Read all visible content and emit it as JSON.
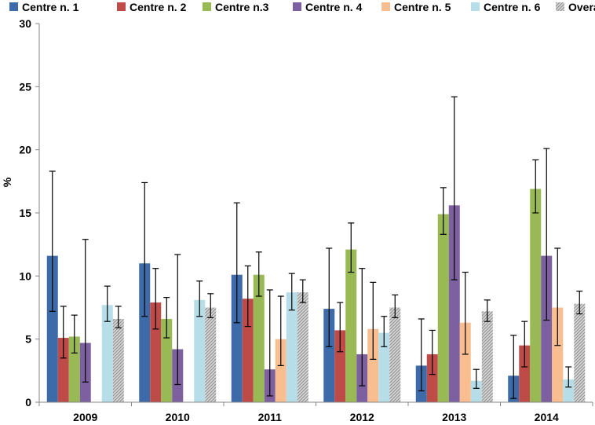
{
  "chart_data": {
    "type": "bar",
    "title": "",
    "xlabel": "",
    "ylabel": "%",
    "ylim": [
      0,
      30
    ],
    "yticks": [
      0,
      5,
      10,
      15,
      20,
      25,
      30
    ],
    "categories": [
      "2009",
      "2010",
      "2011",
      "2012",
      "2013",
      "2014"
    ],
    "legend_position": "top",
    "grid": false,
    "series": [
      {
        "name": "Centre n. 1",
        "color": "#3d6aa8",
        "pattern": false,
        "values": [
          11.6,
          11.0,
          10.1,
          7.4,
          2.9,
          2.1
        ],
        "error_low": [
          7.2,
          6.8,
          6.3,
          4.4,
          0.9,
          0.3
        ],
        "error_high": [
          18.3,
          17.4,
          15.8,
          12.2,
          6.6,
          5.3
        ]
      },
      {
        "name": "Centre n. 2",
        "color": "#be4b48",
        "pattern": false,
        "values": [
          5.1,
          7.9,
          8.2,
          5.7,
          3.8,
          4.5
        ],
        "error_low": [
          3.5,
          5.8,
          6.0,
          4.0,
          2.2,
          2.8
        ],
        "error_high": [
          7.6,
          10.6,
          10.8,
          7.9,
          5.7,
          6.4
        ]
      },
      {
        "name": "Centre n.3",
        "color": "#98b954",
        "pattern": false,
        "values": [
          5.2,
          6.6,
          10.1,
          12.1,
          14.9,
          16.9
        ],
        "error_low": [
          3.9,
          5.1,
          8.4,
          10.3,
          13.3,
          15.0
        ],
        "error_high": [
          6.9,
          8.3,
          11.9,
          14.2,
          17.0,
          19.2
        ]
      },
      {
        "name": "Centre n. 4",
        "color": "#7d60a0",
        "pattern": false,
        "values": [
          4.7,
          4.2,
          2.6,
          3.8,
          15.6,
          11.6
        ],
        "error_low": [
          1.6,
          1.4,
          0.5,
          1.3,
          9.7,
          6.5
        ],
        "error_high": [
          12.9,
          11.7,
          8.9,
          10.6,
          24.2,
          20.1
        ]
      },
      {
        "name": "Centre n. 5",
        "color": "#f9be90",
        "pattern": false,
        "values": [
          null,
          null,
          5.0,
          5.8,
          6.3,
          7.5
        ],
        "error_low": [
          null,
          null,
          2.9,
          3.4,
          3.8,
          4.5
        ],
        "error_high": [
          null,
          null,
          8.4,
          9.5,
          10.3,
          12.2
        ]
      },
      {
        "name": "Centre n. 6",
        "color": "#b6dde8",
        "pattern": false,
        "values": [
          7.7,
          8.1,
          8.7,
          5.5,
          1.7,
          1.8
        ],
        "error_low": [
          6.4,
          6.8,
          7.3,
          4.4,
          1.1,
          1.2
        ],
        "error_high": [
          9.2,
          9.6,
          10.2,
          6.8,
          2.6,
          2.8
        ]
      },
      {
        "name": "Overall",
        "color": "#b0b0b0",
        "pattern": true,
        "values": [
          6.6,
          7.5,
          8.7,
          7.5,
          7.2,
          7.8
        ],
        "error_low": [
          5.9,
          6.7,
          7.9,
          6.7,
          6.4,
          7.0
        ],
        "error_high": [
          7.6,
          8.6,
          9.7,
          8.5,
          8.1,
          8.8
        ]
      }
    ]
  }
}
